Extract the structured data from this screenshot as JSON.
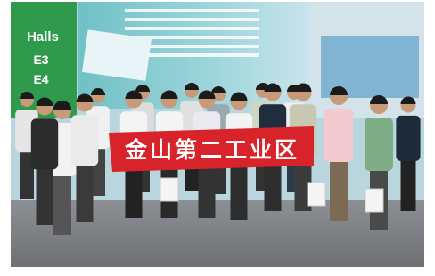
{
  "hall_sign": {
    "title": "Halls",
    "lines": [
      "E3",
      "E4"
    ]
  },
  "banner": {
    "text": "金山第二工业区"
  }
}
